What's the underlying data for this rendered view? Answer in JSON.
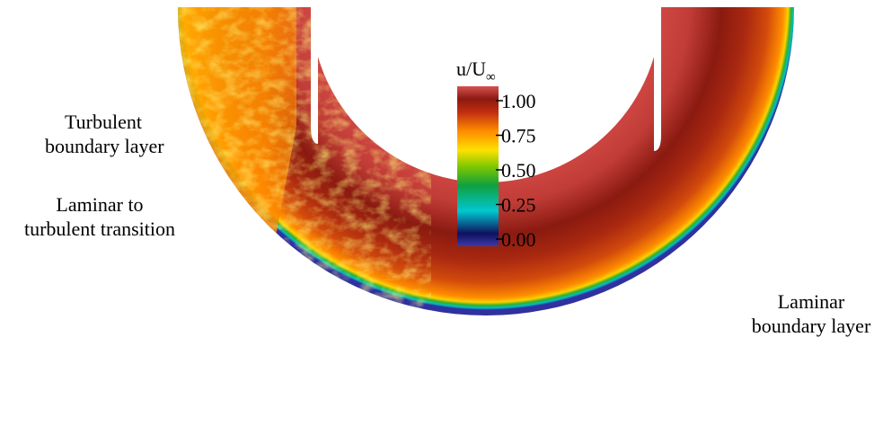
{
  "colorbar": {
    "title_main": "u/U",
    "title_sub": "∞",
    "ticks": [
      "1.00",
      "0.75",
      "0.50",
      "0.25",
      "0.00"
    ],
    "tick_values": [
      1.0,
      0.75,
      0.5,
      0.25,
      0.0
    ]
  },
  "annotations": {
    "turbulent": [
      "Turbulent",
      "boundary layer"
    ],
    "transition": [
      "Laminar to",
      "turbulent transition"
    ],
    "laminar": [
      "Laminar",
      "boundary layer"
    ]
  },
  "colors": {
    "freestream": "#d85050",
    "dark_core": "#8a1a10",
    "orange": "#ff8c00",
    "yellow": "#ffe000",
    "green": "#20a020",
    "cyan": "#00d0d0",
    "blue": "#3030a0"
  }
}
